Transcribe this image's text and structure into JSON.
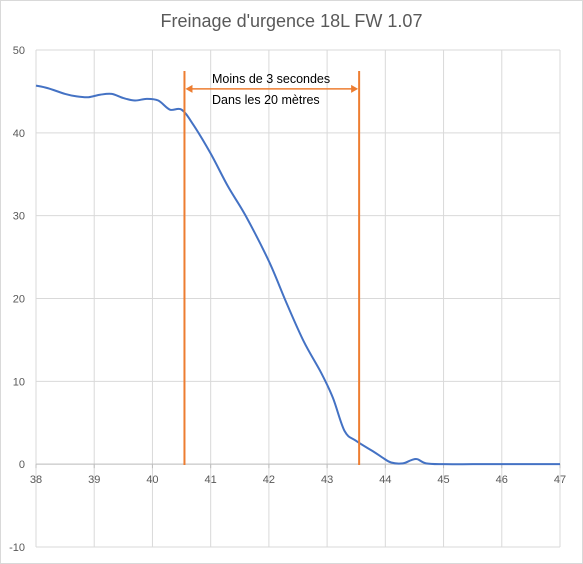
{
  "chart_data": {
    "type": "line",
    "title": "Freinage d'urgence 18L FW 1.07",
    "xlabel": "",
    "ylabel": "",
    "xlim": [
      38,
      47
    ],
    "ylim": [
      -10,
      50
    ],
    "x_ticks": [
      38,
      39,
      40,
      41,
      42,
      43,
      44,
      45,
      46,
      47
    ],
    "y_ticks": [
      -10,
      0,
      10,
      20,
      30,
      40,
      50
    ],
    "grid": "vertical and horizontal",
    "legend": "none",
    "series": [
      {
        "color": "#4472C4",
        "points": [
          [
            38.0,
            45.7
          ],
          [
            38.2,
            45.4
          ],
          [
            38.5,
            44.7
          ],
          [
            38.7,
            44.4
          ],
          [
            38.9,
            44.3
          ],
          [
            39.1,
            44.6
          ],
          [
            39.3,
            44.7
          ],
          [
            39.5,
            44.2
          ],
          [
            39.7,
            43.9
          ],
          [
            39.9,
            44.1
          ],
          [
            40.1,
            43.9
          ],
          [
            40.3,
            42.8
          ],
          [
            40.5,
            42.8
          ],
          [
            40.7,
            41.0
          ],
          [
            41.0,
            37.5
          ],
          [
            41.3,
            33.5
          ],
          [
            41.6,
            30.0
          ],
          [
            42.0,
            24.5
          ],
          [
            42.3,
            19.5
          ],
          [
            42.6,
            14.8
          ],
          [
            42.9,
            11.0
          ],
          [
            43.1,
            8.0
          ],
          [
            43.3,
            4.0
          ],
          [
            43.5,
            2.8
          ],
          [
            43.8,
            1.5
          ],
          [
            43.95,
            0.8
          ],
          [
            44.1,
            0.2
          ],
          [
            44.3,
            0.1
          ],
          [
            44.45,
            0.5
          ],
          [
            44.55,
            0.6
          ],
          [
            44.7,
            0.1
          ],
          [
            45.0,
            0.0
          ],
          [
            45.5,
            0.0
          ],
          [
            46.0,
            0.0
          ],
          [
            46.5,
            0.0
          ],
          [
            47.0,
            0.0
          ]
        ]
      }
    ],
    "markers": {
      "color": "#ED7D31",
      "lines_x": [
        40.55,
        43.55
      ],
      "arrow_y": 45.3,
      "annotation": [
        "Moins de 3 secondes",
        "Dans les 20 mètres"
      ]
    }
  }
}
